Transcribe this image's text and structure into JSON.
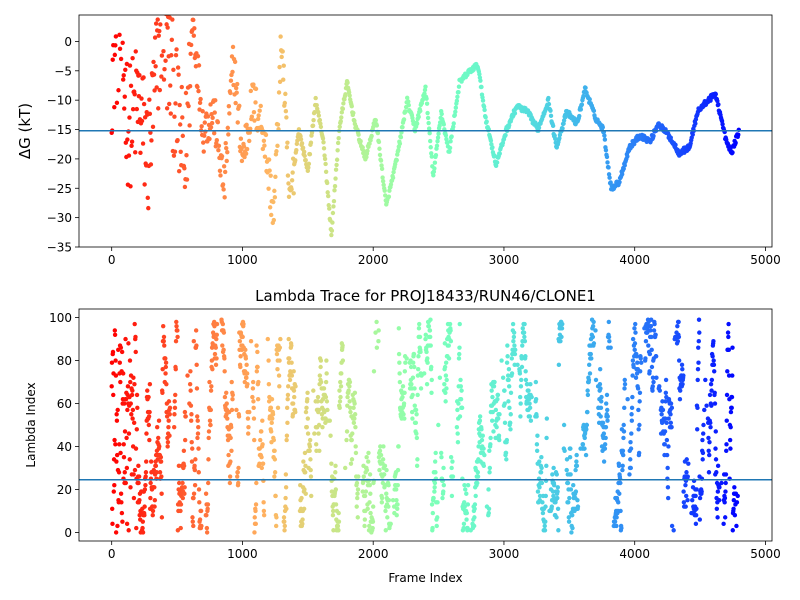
{
  "chart_data": [
    {
      "type": "scatter",
      "title": "",
      "xlabel": "",
      "ylabel": "ΔG (kT)",
      "xlim": [
        -250,
        5050
      ],
      "ylim": [
        -35,
        4.5
      ],
      "xticks": [
        0,
        1000,
        2000,
        3000,
        4000,
        5000
      ],
      "yticks": [
        0,
        -5,
        -10,
        -15,
        -20,
        -25,
        -30,
        -35
      ],
      "grid": false,
      "colormap": "rainbow-reversed (red at frame 0, violet at last frame)",
      "hline": {
        "y": -15.2,
        "color": "#1f77b4"
      },
      "trace_anchors": {
        "x": [
          0,
          60,
          130,
          200,
          280,
          380,
          470,
          560,
          620,
          700,
          780,
          860,
          930,
          1000,
          1080,
          1160,
          1240,
          1300,
          1360,
          1430,
          1500,
          1560,
          1620,
          1680,
          1740,
          1800,
          1860,
          1940,
          2020,
          2100,
          2180,
          2260,
          2320,
          2400,
          2460,
          2520,
          2580,
          2660,
          2740,
          2800,
          2860,
          2940,
          3020,
          3100,
          3180,
          3260,
          3340,
          3400,
          3480,
          3560,
          3620,
          3700,
          3760,
          3820,
          3880,
          3960,
          4040,
          4120,
          4180,
          4260,
          4340,
          4420,
          4480,
          4560,
          4620,
          4700,
          4740,
          4800
        ],
        "y": [
          -5,
          2,
          -15,
          -10,
          -20,
          3,
          -8,
          -22,
          4,
          -15,
          -12,
          -25,
          -3,
          -20,
          -10,
          -15,
          -30,
          1,
          -28,
          -15,
          -22,
          -10,
          -17,
          -33,
          -15,
          -7,
          -14,
          -20,
          -13,
          -28,
          -20,
          -10,
          -15,
          -8,
          -23,
          -12,
          -19,
          -7,
          -5,
          -4,
          -13,
          -21,
          -15,
          -11,
          -12,
          -15,
          -10,
          -18,
          -12,
          -14,
          -8,
          -13,
          -15,
          -25,
          -24,
          -18,
          -16,
          -17,
          -14,
          -16,
          -19,
          -18,
          -12,
          -10,
          -9,
          -17,
          -19,
          -15
        ]
      }
    },
    {
      "type": "scatter",
      "title": "Lambda Trace for PROJ18433/RUN46/CLONE1",
      "xlabel": "Frame Index",
      "ylabel": "Lambda Index",
      "xlim": [
        -250,
        5050
      ],
      "ylim": [
        -4,
        104
      ],
      "xticks": [
        0,
        1000,
        2000,
        3000,
        4000,
        5000
      ],
      "yticks": [
        0,
        20,
        40,
        60,
        80,
        100
      ],
      "grid": false,
      "colormap": "rainbow-reversed (red at frame 0, violet at last frame)",
      "hline": {
        "y": 24.5,
        "color": "#1f77b4"
      },
      "lambda_range": [
        0,
        99
      ],
      "n_frames": 4800
    }
  ]
}
